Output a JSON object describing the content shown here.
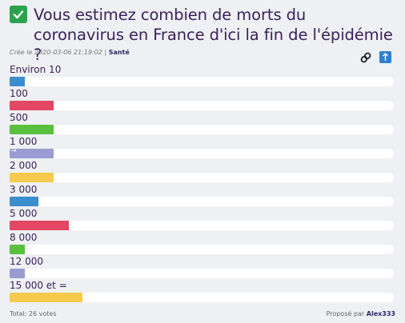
{
  "title": "Vous estimez combien de morts du coronavirus en France d'ici la fin de l'épidémie ?",
  "meta": {
    "created": "Crée le 2020-03-06 21:19:02 |",
    "category": "Santé"
  },
  "icons": {
    "title_check": "check-mark-icon",
    "link": "link-icon",
    "up": "arrow-up-icon"
  },
  "colors": {
    "blue": "#3b8fce",
    "red": "#e24764",
    "green": "#58c03c",
    "purple": "#9b9bd4",
    "yellow": "#f7c94c"
  },
  "options": [
    {
      "label": "Environ 10",
      "fraction": 0.04,
      "color": "#3b8fce"
    },
    {
      "label": "100",
      "fraction": 0.115,
      "color": "#e24764"
    },
    {
      "label": "500",
      "fraction": 0.115,
      "color": "#58c03c"
    },
    {
      "label": "1 000",
      "fraction": 0.115,
      "color": "#9b9bd4"
    },
    {
      "label": "2 000",
      "fraction": 0.115,
      "color": "#f7c94c"
    },
    {
      "label": "3 000",
      "fraction": 0.075,
      "color": "#3b8fce"
    },
    {
      "label": "5 000",
      "fraction": 0.155,
      "color": "#e24764"
    },
    {
      "label": "8 000",
      "fraction": 0.04,
      "color": "#58c03c"
    },
    {
      "label": "12 000",
      "fraction": 0.04,
      "color": "#9b9bd4"
    },
    {
      "label": "15 000 et =",
      "fraction": 0.19,
      "color": "#f7c94c"
    }
  ],
  "footer": {
    "total": "Total: 26 votes",
    "proposed_prefix": "Proposé par",
    "author": "Alex333"
  }
}
